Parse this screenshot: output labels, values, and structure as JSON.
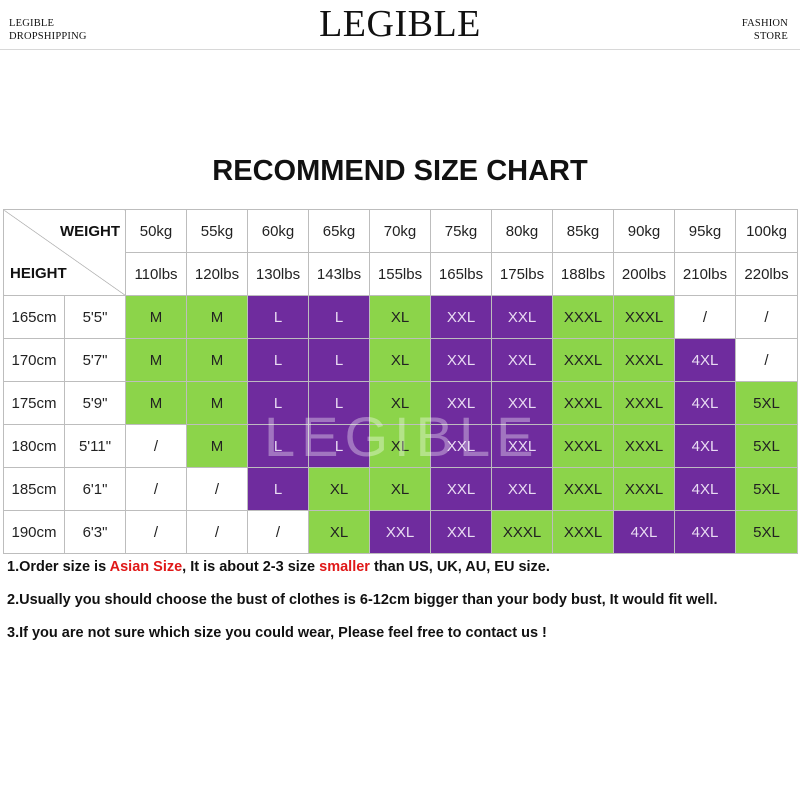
{
  "header": {
    "left_line1": "LEGIBLE",
    "left_line2": "DROPSHIPPING",
    "brand": "LEGIBLE",
    "right_line1": "FASHION",
    "right_line2": "STORE"
  },
  "title": "RECOMMEND SIZE CHART",
  "watermark": "LEGIBLE",
  "colors": {
    "green": "#8cd44a",
    "purple": "#6f2c9e",
    "highlight_red": "#e01818"
  },
  "chart_data": {
    "type": "table",
    "title": "RECOMMEND SIZE CHART",
    "corner_top": "WEIGHT",
    "corner_bottom": "HEIGHT",
    "weights_kg": [
      "50kg",
      "55kg",
      "60kg",
      "65kg",
      "70kg",
      "75kg",
      "80kg",
      "85kg",
      "90kg",
      "95kg",
      "100kg"
    ],
    "weights_lbs": [
      "110lbs",
      "120lbs",
      "130lbs",
      "143lbs",
      "155lbs",
      "165lbs",
      "175lbs",
      "188lbs",
      "200lbs",
      "210lbs",
      "220lbs"
    ],
    "rows": [
      {
        "cm": "165cm",
        "ft": "5'5\"",
        "sizes": [
          "M",
          "M",
          "L",
          "L",
          "XL",
          "XXL",
          "XXL",
          "XXXL",
          "XXXL",
          "/",
          "/"
        ],
        "colors": [
          "green",
          "green",
          "purple",
          "purple",
          "green",
          "purple",
          "purple",
          "green",
          "green",
          "white",
          "white"
        ]
      },
      {
        "cm": "170cm",
        "ft": "5'7\"",
        "sizes": [
          "M",
          "M",
          "L",
          "L",
          "XL",
          "XXL",
          "XXL",
          "XXXL",
          "XXXL",
          "4XL",
          "/"
        ],
        "colors": [
          "green",
          "green",
          "purple",
          "purple",
          "green",
          "purple",
          "purple",
          "green",
          "green",
          "purple",
          "white"
        ]
      },
      {
        "cm": "175cm",
        "ft": "5'9\"",
        "sizes": [
          "M",
          "M",
          "L",
          "L",
          "XL",
          "XXL",
          "XXL",
          "XXXL",
          "XXXL",
          "4XL",
          "5XL"
        ],
        "colors": [
          "green",
          "green",
          "purple",
          "purple",
          "green",
          "purple",
          "purple",
          "green",
          "green",
          "purple",
          "green"
        ]
      },
      {
        "cm": "180cm",
        "ft": "5'11\"",
        "sizes": [
          "/",
          "M",
          "L",
          "L",
          "XL",
          "XXL",
          "XXL",
          "XXXL",
          "XXXL",
          "4XL",
          "5XL"
        ],
        "colors": [
          "white",
          "green",
          "purple",
          "purple",
          "green",
          "purple",
          "purple",
          "green",
          "green",
          "purple",
          "green"
        ]
      },
      {
        "cm": "185cm",
        "ft": "6'1\"",
        "sizes": [
          "/",
          "/",
          "L",
          "XL",
          "XL",
          "XXL",
          "XXL",
          "XXXL",
          "XXXL",
          "4XL",
          "5XL"
        ],
        "colors": [
          "white",
          "white",
          "purple",
          "green",
          "green",
          "purple",
          "purple",
          "green",
          "green",
          "purple",
          "green"
        ]
      },
      {
        "cm": "190cm",
        "ft": "6'3\"",
        "sizes": [
          "/",
          "/",
          "/",
          "XL",
          "XXL",
          "XXL",
          "XXXL",
          "XXXL",
          "4XL",
          "4XL",
          "5XL"
        ],
        "colors": [
          "white",
          "white",
          "white",
          "green",
          "purple",
          "purple",
          "green",
          "green",
          "purple",
          "purple",
          "green"
        ]
      }
    ]
  },
  "notes": {
    "n1_a": "1.Order size is ",
    "n1_b": "Asian Size",
    "n1_c": ", It is about 2-3 size ",
    "n1_d": "smaller",
    "n1_e": " than US, UK, AU, EU size.",
    "n2": "2.Usually you should choose the bust of clothes is 6-12cm bigger than your body bust, It would fit well.",
    "n3": "3.If you are not sure which size you could wear, Please feel free to contact us !"
  }
}
